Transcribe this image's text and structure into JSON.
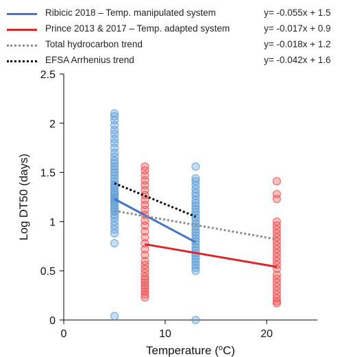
{
  "chart_data": {
    "type": "scatter",
    "xlabel": "Temperature",
    "xlabel_unit": "(oC)",
    "ylabel": "Log DT50 (days)",
    "xlim": [
      0,
      25
    ],
    "ylim": [
      0,
      2.5
    ],
    "x_ticks": [
      0,
      10,
      20
    ],
    "y_ticks": [
      "0",
      "0.5",
      "1",
      "1.5",
      "2",
      "2.5"
    ],
    "grid": false,
    "legend_position": "top",
    "legend": [
      {
        "label": "Ribicic 2018 – Temp. manipulated system",
        "equation": "y= -0.055x + 1.5",
        "color": "#4472c4",
        "style": "solid"
      },
      {
        "label": "Prince 2013 & 2017 – Temp. adapted system",
        "equation": "y= -0.017x + 0.9",
        "color": "#d9262b",
        "style": "solid"
      },
      {
        "label": "Total hydrocarbon trend",
        "equation": "y= -0.018x + 1.2",
        "color": "#8c8c8c",
        "style": "dotted"
      },
      {
        "label": "EFSA Arrhenius trend",
        "equation": "y= -0.042x + 1.6",
        "color": "#000000",
        "style": "dotted"
      }
    ],
    "series": [
      {
        "name": "Ribicic 2018 – Temp. manipulated system",
        "type": "scatter",
        "color": "#5b9bd5",
        "points": [
          {
            "x": 5,
            "y": 2.1
          },
          {
            "x": 5,
            "y": 2.07
          },
          {
            "x": 5,
            "y": 2.03
          },
          {
            "x": 5,
            "y": 1.98
          },
          {
            "x": 5,
            "y": 1.93
          },
          {
            "x": 5,
            "y": 1.89
          },
          {
            "x": 5,
            "y": 1.84
          },
          {
            "x": 5,
            "y": 1.8
          },
          {
            "x": 5,
            "y": 1.75
          },
          {
            "x": 5,
            "y": 1.7
          },
          {
            "x": 5,
            "y": 1.66
          },
          {
            "x": 5,
            "y": 1.62
          },
          {
            "x": 5,
            "y": 1.59
          },
          {
            "x": 5,
            "y": 1.56
          },
          {
            "x": 5,
            "y": 1.53
          },
          {
            "x": 5,
            "y": 1.5
          },
          {
            "x": 5,
            "y": 1.47
          },
          {
            "x": 5,
            "y": 1.44
          },
          {
            "x": 5,
            "y": 1.41
          },
          {
            "x": 5,
            "y": 1.38
          },
          {
            "x": 5,
            "y": 1.36
          },
          {
            "x": 5,
            "y": 1.34
          },
          {
            "x": 5,
            "y": 1.31
          },
          {
            "x": 5,
            "y": 1.29
          },
          {
            "x": 5,
            "y": 1.27
          },
          {
            "x": 5,
            "y": 1.25
          },
          {
            "x": 5,
            "y": 1.23
          },
          {
            "x": 5,
            "y": 1.21
          },
          {
            "x": 5,
            "y": 1.19
          },
          {
            "x": 5,
            "y": 1.17
          },
          {
            "x": 5,
            "y": 1.14
          },
          {
            "x": 5,
            "y": 1.12
          },
          {
            "x": 5,
            "y": 1.1
          },
          {
            "x": 5,
            "y": 1.07
          },
          {
            "x": 5,
            "y": 1.04
          },
          {
            "x": 5,
            "y": 1.0
          },
          {
            "x": 5,
            "y": 0.96
          },
          {
            "x": 5,
            "y": 0.92
          },
          {
            "x": 5,
            "y": 0.88
          },
          {
            "x": 5,
            "y": 0.78
          },
          {
            "x": 5,
            "y": 0.04
          },
          {
            "x": 13,
            "y": 1.56
          },
          {
            "x": 13,
            "y": 1.44
          },
          {
            "x": 13,
            "y": 1.41
          },
          {
            "x": 13,
            "y": 1.37
          },
          {
            "x": 13,
            "y": 1.33
          },
          {
            "x": 13,
            "y": 1.29
          },
          {
            "x": 13,
            "y": 1.26
          },
          {
            "x": 13,
            "y": 1.22
          },
          {
            "x": 13,
            "y": 1.19
          },
          {
            "x": 13,
            "y": 1.16
          },
          {
            "x": 13,
            "y": 1.13
          },
          {
            "x": 13,
            "y": 1.1
          },
          {
            "x": 13,
            "y": 1.07
          },
          {
            "x": 13,
            "y": 1.04
          },
          {
            "x": 13,
            "y": 1.01
          },
          {
            "x": 13,
            "y": 0.98
          },
          {
            "x": 13,
            "y": 0.95
          },
          {
            "x": 13,
            "y": 0.92
          },
          {
            "x": 13,
            "y": 0.89
          },
          {
            "x": 13,
            "y": 0.86
          },
          {
            "x": 13,
            "y": 0.83
          },
          {
            "x": 13,
            "y": 0.8
          },
          {
            "x": 13,
            "y": 0.77
          },
          {
            "x": 13,
            "y": 0.74
          },
          {
            "x": 13,
            "y": 0.71
          },
          {
            "x": 13,
            "y": 0.68
          },
          {
            "x": 13,
            "y": 0.65
          },
          {
            "x": 13,
            "y": 0.62
          },
          {
            "x": 13,
            "y": 0.59
          },
          {
            "x": 13,
            "y": 0.56
          },
          {
            "x": 13,
            "y": 0.53
          },
          {
            "x": 13,
            "y": 0.5
          },
          {
            "x": 13,
            "y": 0.0
          }
        ]
      },
      {
        "name": "Prince 2013 & 2017 – Temp. adapted system",
        "type": "scatter",
        "color": "#e74c4c",
        "points": [
          {
            "x": 8,
            "y": 1.56
          },
          {
            "x": 8,
            "y": 1.52
          },
          {
            "x": 8,
            "y": 1.47
          },
          {
            "x": 8,
            "y": 1.42
          },
          {
            "x": 8,
            "y": 1.37
          },
          {
            "x": 8,
            "y": 1.32
          },
          {
            "x": 8,
            "y": 1.27
          },
          {
            "x": 8,
            "y": 1.22
          },
          {
            "x": 8,
            "y": 1.17
          },
          {
            "x": 8,
            "y": 1.12
          },
          {
            "x": 8,
            "y": 1.07
          },
          {
            "x": 8,
            "y": 1.01
          },
          {
            "x": 8,
            "y": 0.96
          },
          {
            "x": 8,
            "y": 0.9
          },
          {
            "x": 8,
            "y": 0.84
          },
          {
            "x": 8,
            "y": 0.78
          },
          {
            "x": 8,
            "y": 0.72
          },
          {
            "x": 8,
            "y": 0.66
          },
          {
            "x": 8,
            "y": 0.6
          },
          {
            "x": 8,
            "y": 0.56
          },
          {
            "x": 8,
            "y": 0.52
          },
          {
            "x": 8,
            "y": 0.48
          },
          {
            "x": 8,
            "y": 0.44
          },
          {
            "x": 8,
            "y": 0.41
          },
          {
            "x": 8,
            "y": 0.38
          },
          {
            "x": 8,
            "y": 0.35
          },
          {
            "x": 8,
            "y": 0.32
          },
          {
            "x": 8,
            "y": 0.29
          },
          {
            "x": 8,
            "y": 0.26
          },
          {
            "x": 8,
            "y": 0.23
          },
          {
            "x": 21,
            "y": 1.41
          },
          {
            "x": 21,
            "y": 1.28
          },
          {
            "x": 21,
            "y": 1.23
          },
          {
            "x": 21,
            "y": 1.0
          },
          {
            "x": 21,
            "y": 0.96
          },
          {
            "x": 21,
            "y": 0.92
          },
          {
            "x": 21,
            "y": 0.88
          },
          {
            "x": 21,
            "y": 0.84
          },
          {
            "x": 21,
            "y": 0.8
          },
          {
            "x": 21,
            "y": 0.76
          },
          {
            "x": 21,
            "y": 0.72
          },
          {
            "x": 21,
            "y": 0.68
          },
          {
            "x": 21,
            "y": 0.64
          },
          {
            "x": 21,
            "y": 0.6
          },
          {
            "x": 21,
            "y": 0.56
          },
          {
            "x": 21,
            "y": 0.52
          },
          {
            "x": 21,
            "y": 0.46
          },
          {
            "x": 21,
            "y": 0.42
          },
          {
            "x": 21,
            "y": 0.38
          },
          {
            "x": 21,
            "y": 0.34
          },
          {
            "x": 21,
            "y": 0.3
          },
          {
            "x": 21,
            "y": 0.26
          },
          {
            "x": 21,
            "y": 0.22
          },
          {
            "x": 21,
            "y": 0.19
          },
          {
            "x": 21,
            "y": 0.17
          }
        ]
      },
      {
        "name": "Ribicic 2018 – Temp. manipulated system",
        "type": "line",
        "color": "#4472c4",
        "style": "solid",
        "x": [
          5,
          13
        ],
        "y": [
          1.23,
          0.79
        ]
      },
      {
        "name": "Prince 2013 & 2017 – Temp. adapted system",
        "type": "line",
        "color": "#d9262b",
        "style": "solid",
        "x": [
          8,
          21
        ],
        "y": [
          0.77,
          0.54
        ]
      },
      {
        "name": "Total hydrocarbon trend",
        "type": "line",
        "color": "#8c8c8c",
        "style": "dotted",
        "x": [
          5,
          21
        ],
        "y": [
          1.11,
          0.82
        ]
      },
      {
        "name": "EFSA Arrhenius trend",
        "type": "line",
        "color": "#000000",
        "style": "dotted",
        "x": [
          5,
          13
        ],
        "y": [
          1.39,
          1.05
        ]
      }
    ]
  }
}
